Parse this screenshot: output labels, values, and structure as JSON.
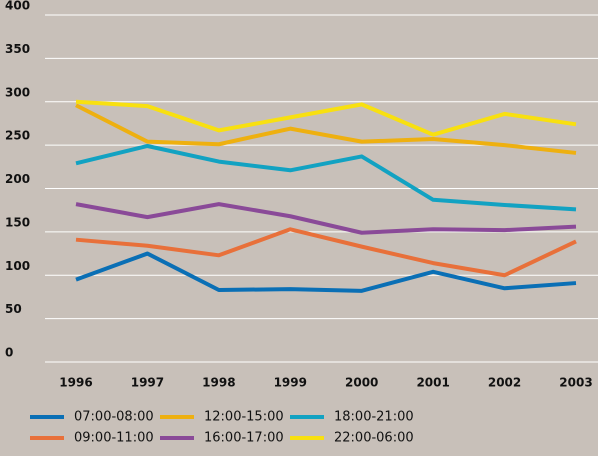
{
  "chart_data": {
    "type": "line",
    "categories": [
      "1996",
      "1997",
      "1998",
      "1999",
      "2000",
      "2001",
      "2002",
      "2003"
    ],
    "series": [
      {
        "name": "07:00-08:00",
        "color": "#0a6fb5",
        "values": [
          95,
          125,
          83,
          84,
          82,
          104,
          85,
          91
        ]
      },
      {
        "name": "09:00-11:00",
        "color": "#e8703a",
        "values": [
          141,
          134,
          123,
          153,
          133,
          114,
          100,
          139
        ]
      },
      {
        "name": "12:00-15:00",
        "color": "#eeb010",
        "values": [
          296,
          254,
          251,
          269,
          254,
          257,
          250,
          241
        ]
      },
      {
        "name": "16:00-17:00",
        "color": "#8a4a98",
        "values": [
          182,
          167,
          182,
          168,
          149,
          153,
          152,
          156
        ]
      },
      {
        "name": "18:00-21:00",
        "color": "#12a2c2",
        "values": [
          229,
          249,
          231,
          221,
          237,
          187,
          181,
          176
        ]
      },
      {
        "name": "22:00-06:00",
        "color": "#f8e010",
        "values": [
          300,
          295,
          267,
          282,
          297,
          262,
          286,
          274
        ]
      }
    ],
    "ylim": [
      0,
      400
    ],
    "yticks": [
      0,
      50,
      100,
      150,
      200,
      250,
      300,
      350,
      400
    ],
    "grid": true
  }
}
